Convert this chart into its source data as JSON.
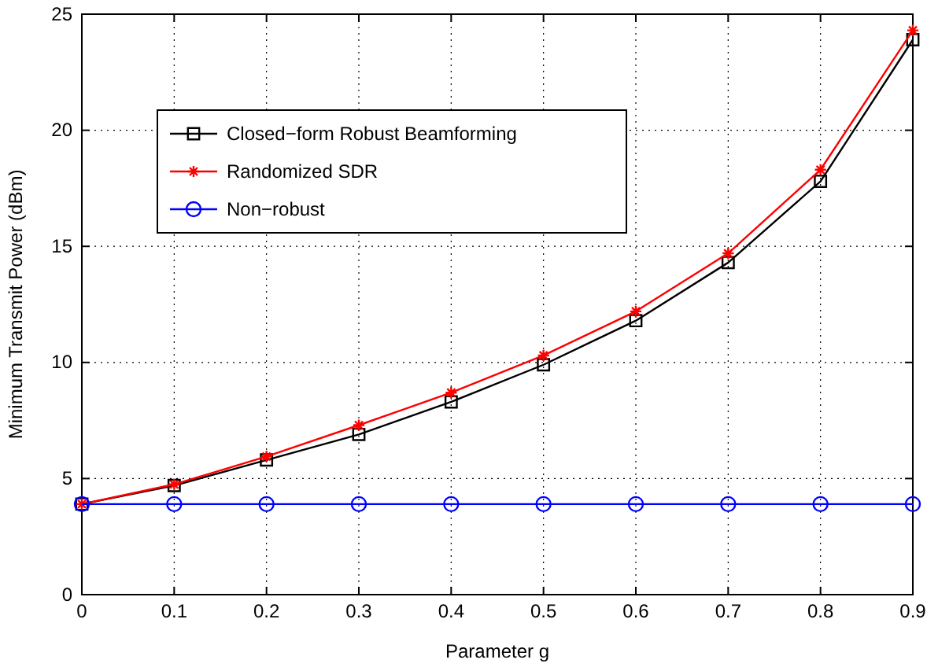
{
  "chart_data": {
    "type": "line",
    "xlabel": "Parameter g",
    "ylabel": "Minimum Transmit Power (dBm)",
    "x": [
      0,
      0.1,
      0.2,
      0.3,
      0.4,
      0.5,
      0.6,
      0.7,
      0.8,
      0.9
    ],
    "xlim": [
      0,
      0.9
    ],
    "xticks": [
      0,
      0.1,
      0.2,
      0.3,
      0.4,
      0.5,
      0.6,
      0.7,
      0.8,
      0.9
    ],
    "ylim": [
      0,
      25
    ],
    "yticks": [
      0,
      5,
      10,
      15,
      20,
      25
    ],
    "grid": true,
    "legend": "top left",
    "line_style": "solid",
    "series": [
      {
        "name": "Closed−form Robust Beamforming",
        "color": "#000000",
        "marker": "square",
        "values": [
          3.9,
          4.7,
          5.8,
          6.9,
          8.3,
          9.9,
          11.8,
          14.3,
          17.8,
          23.9
        ]
      },
      {
        "name": "Randomized SDR",
        "color": "#ff0000",
        "marker": "cross",
        "values": [
          3.9,
          4.75,
          5.95,
          7.3,
          8.7,
          10.3,
          12.2,
          14.7,
          18.3,
          24.3
        ]
      },
      {
        "name": "Non−robust",
        "color": "#0000ff",
        "marker": "circle",
        "values": [
          3.9,
          3.9,
          3.9,
          3.9,
          3.9,
          3.9,
          3.9,
          3.9,
          3.9,
          3.9
        ]
      }
    ]
  }
}
